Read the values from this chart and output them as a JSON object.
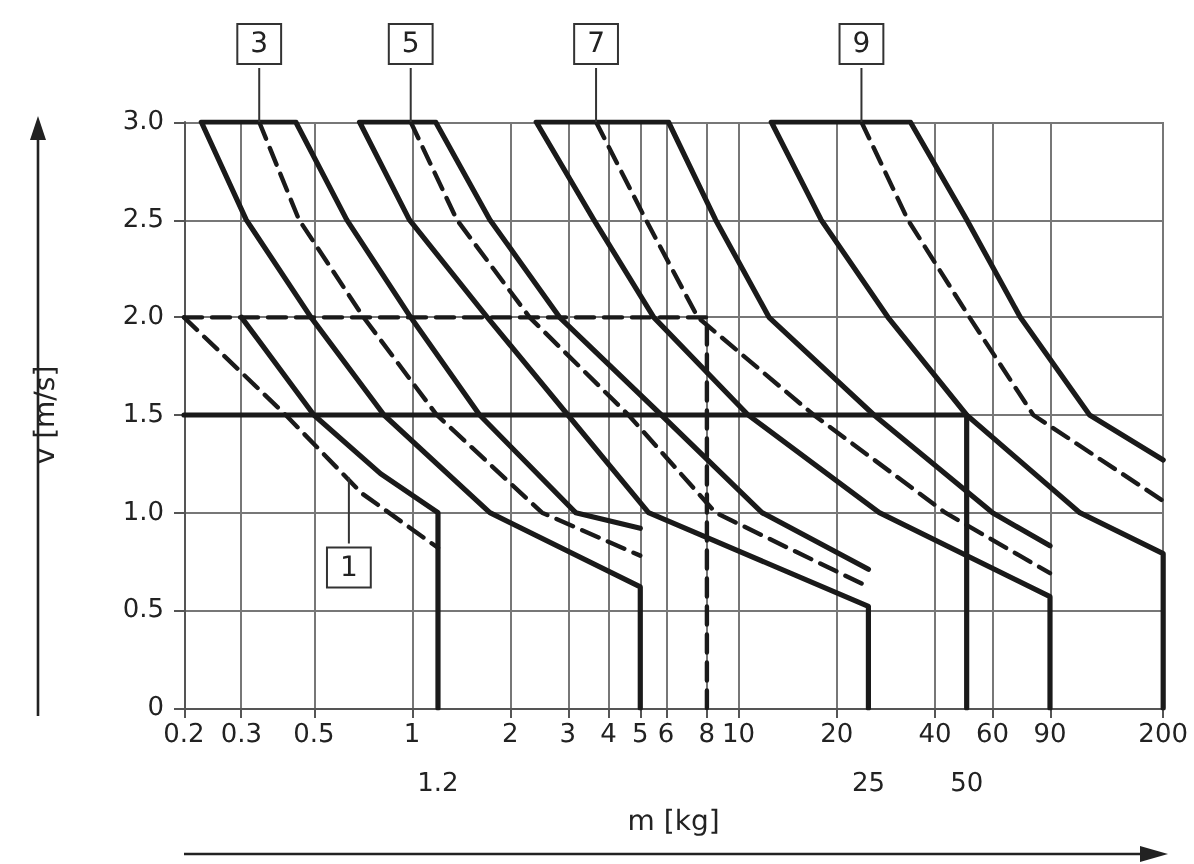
{
  "chart_data": {
    "type": "line",
    "xlabel": "m [kg]",
    "ylabel": "v [m/s]",
    "log": "x",
    "grid": true,
    "marker": "none",
    "xlim": [
      0.2,
      200
    ],
    "xticks": [
      0.2,
      0.3,
      0.5,
      1,
      2,
      3,
      4,
      5,
      6,
      8,
      10,
      20,
      40,
      60,
      90,
      200
    ],
    "ylim": [
      0,
      3
    ],
    "yticks": [
      0,
      0.5,
      {
        "value": 1,
        "label": "1.0"
      },
      1.5,
      {
        "value": 2,
        "label": "2.0"
      },
      2.5,
      {
        "value": 3,
        "label": "3.0"
      }
    ],
    "series": [
      {
        "color": "#1a1a1a",
        "line_style": "solid",
        "x": [
          1.2,
          1.2,
          0.8,
          0.5,
          0.3
        ],
        "values": [
          0,
          1.0,
          1.2,
          1.5,
          2.0
        ]
      },
      {
        "color": "#1a1a1a",
        "line_style": "dashed",
        "x": [
          0.2,
          0.41,
          0.7,
          1.2
        ],
        "values": [
          2.0,
          1.5,
          1.1,
          0.82
        ]
      },
      {
        "color": "#1a1a1a",
        "line_style": "solid",
        "x": [
          5,
          5,
          1.73,
          0.82,
          0.49,
          0.31,
          0.226,
          0.44,
          0.63,
          0.99,
          1.61,
          3.17,
          5
        ],
        "values": [
          0,
          0.62,
          1.0,
          1.5,
          2.0,
          2.5,
          3.0,
          3.0,
          2.5,
          2.0,
          1.5,
          1.0,
          0.92
        ]
      },
      {
        "color": "#1a1a1a",
        "line_style": "dashed",
        "x": [
          0.34,
          0.45,
          0.71,
          1.19,
          2.5,
          5
        ],
        "values": [
          3,
          2.5,
          2,
          1.5,
          1,
          0.78
        ]
      },
      {
        "color": "#1a1a1a",
        "line_style": "solid",
        "x": [
          25,
          25,
          5.3,
          3.0,
          1.7,
          0.98,
          0.69,
          1.18,
          1.73,
          2.83,
          5.8,
          11.8,
          25
        ],
        "values": [
          0,
          0.52,
          1.0,
          1.5,
          2.0,
          2.5,
          3.0,
          3.0,
          2.5,
          2.0,
          1.5,
          1.0,
          0.71
        ]
      },
      {
        "color": "#1a1a1a",
        "line_style": "dashed",
        "x": [
          0.99,
          1.37,
          2.29,
          4.6,
          8.5,
          25
        ],
        "values": [
          3,
          2.5,
          2,
          1.5,
          1,
          0.62
        ]
      },
      {
        "color": "#1a1a1a",
        "line_style": "solid",
        "x": [
          90,
          90,
          27,
          10.7,
          5.5,
          3.6,
          2.4,
          6.1,
          8.5,
          12.4,
          26,
          60,
          90
        ],
        "values": [
          0,
          0.57,
          1.0,
          1.5,
          2.0,
          2.5,
          3.0,
          3.0,
          2.5,
          2.0,
          1.5,
          1.0,
          0.83
        ]
      },
      {
        "color": "#1a1a1a",
        "line_style": "dashed",
        "x": [
          3.66,
          5.2,
          7.5,
          17,
          43,
          90
        ],
        "values": [
          3,
          2.5,
          2,
          1.5,
          1,
          0.69
        ]
      },
      {
        "color": "#1a1a1a",
        "line_style": "solid",
        "x": [
          200,
          200,
          111,
          50,
          28.7,
          17.9,
          12.6,
          33.6,
          50,
          73,
          119,
          200
        ],
        "values": [
          0,
          0.79,
          1.0,
          1.5,
          2.0,
          2.5,
          3.0,
          3.0,
          2.5,
          2.0,
          1.5,
          1.27
        ]
      },
      {
        "color": "#1a1a1a",
        "line_style": "dashed",
        "x": [
          23.8,
          33,
          51,
          80,
          200
        ],
        "values": [
          3,
          2.5,
          2,
          1.5,
          1.06
        ]
      },
      {
        "color": "#1a1a1a",
        "line_style": "dashed",
        "x": [
          0.2,
          8,
          8
        ],
        "values": [
          2,
          2,
          0
        ]
      },
      {
        "color": "#1a1a1a",
        "line_style": "solid",
        "x": [
          0.2,
          50,
          50
        ],
        "values": [
          1.5,
          1.5,
          0
        ]
      }
    ],
    "annotations": [
      {
        "text": "1",
        "x": 0.64,
        "y": 1.18
      },
      {
        "text": "3",
        "x": 0.34,
        "y": 3.0
      },
      {
        "text": "5",
        "x": 0.99,
        "y": 3.0
      },
      {
        "text": "7",
        "x": 3.66,
        "y": 3.0
      },
      {
        "text": "9",
        "x": 23.8,
        "y": 3.0
      },
      {
        "text": "1.2",
        "x": 1.2,
        "y": 0
      },
      {
        "text": "25",
        "x": 25,
        "y": 0
      },
      {
        "text": "50",
        "x": 50,
        "y": 0
      }
    ]
  }
}
